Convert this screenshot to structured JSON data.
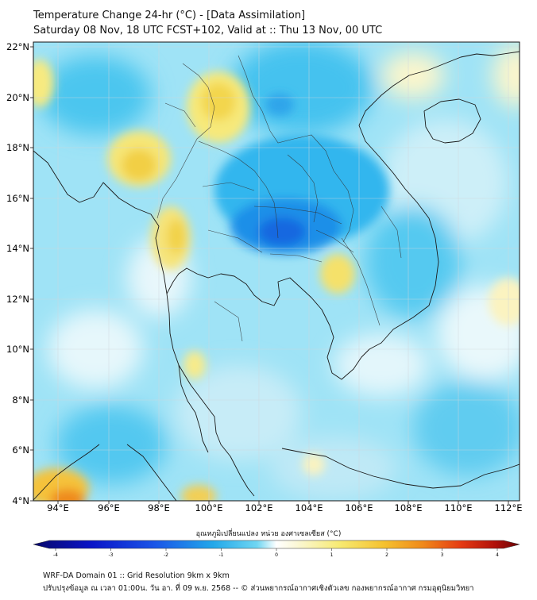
{
  "title_line1": "Temperature Change 24-hr (°C) - [Data Assimilation]",
  "title_line2": "Saturday 08 Nov, 18 UTC FCST+102, Valid at :: Thu 13 Nov, 00 UTC",
  "lat_labels": [
    "22°N",
    "20°N",
    "18°N",
    "16°N",
    "14°N",
    "12°N",
    "10°N",
    "8°N",
    "6°N",
    "4°N"
  ],
  "lon_labels": [
    "94°E",
    "96°E",
    "98°E",
    "100°E",
    "102°E",
    "104°E",
    "106°E",
    "108°E",
    "110°E",
    "112°E"
  ],
  "colorbar": {
    "title": "อุณหภูมิเปลี่ยนแปลง หน่วย องศาเซลเซียส (°C)",
    "ticks": [
      "-4",
      "-3",
      "-2",
      "-1",
      "0",
      "1",
      "2",
      "3",
      "4"
    ],
    "min": -4,
    "max": 4,
    "colors": [
      "#08086b",
      "#0a14c8",
      "#1a55e8",
      "#22a8ea",
      "#6fd6f2",
      "#e6f7fb",
      "#fbf8d8",
      "#f7ea72",
      "#f5c230",
      "#f08a1a",
      "#e53a12",
      "#b0100a",
      "#6a0505"
    ]
  },
  "footer_line1": "WRF-DA Domain 01 :: Grid Resolution 9km x 9km",
  "footer_line2": "ปรับปรุงข้อมูล ณ เวลา 01:00น. วัน อา. ที่ 09 พ.ย. 2568 -- © ส่วนพยากรณ์อากาศเชิงตัวเลข กองพยากรณ์อากาศ กรมอุตุนิยมวิทยา"
}
